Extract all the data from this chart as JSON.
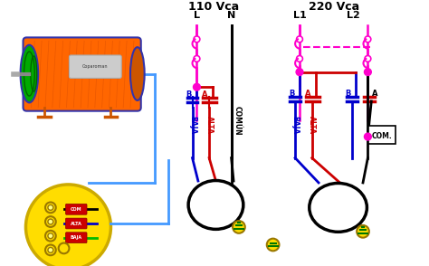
{
  "bg_color": "#ffffff",
  "label_110": "110 Vca",
  "label_220": "220 Vca",
  "label_L": "L",
  "label_N": "N",
  "label_L1": "L1",
  "label_L2": "L2",
  "label_BAJA": "BAJA",
  "label_ALTA": "ALTA",
  "label_COMUN": "COMÚN",
  "label_COM": "COM.",
  "label_B": "B",
  "label_A": "A",
  "color_black": "#000000",
  "color_red": "#cc0000",
  "color_blue": "#0000cc",
  "color_pink": "#ff00cc",
  "color_green": "#007700",
  "color_yellow": "#ffdd00",
  "color_orange": "#ff6600",
  "color_lt_blue": "#4499ff"
}
